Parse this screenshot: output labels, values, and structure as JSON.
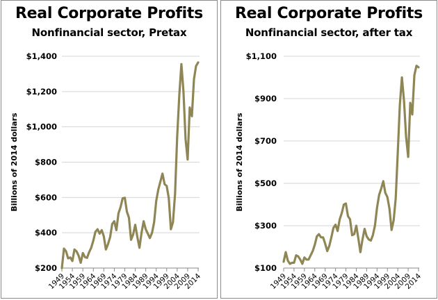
{
  "chart_data": [
    {
      "type": "line",
      "title": "Real Corporate Profits",
      "subtitle": "Nonfinancial sector, Pretax",
      "xlabel": "",
      "ylabel": "Billions of 2014 dollars",
      "ylim": [
        200,
        1400
      ],
      "yticks": [
        200,
        400,
        600,
        800,
        1000,
        1200,
        1400
      ],
      "ytick_labels": [
        "$200",
        "$400",
        "$600",
        "$800",
        "$1,000",
        "$1,200",
        "$1,400"
      ],
      "xtick_labels": [
        "1949",
        "1954",
        "1959",
        "1964",
        "1969",
        "1974",
        "1979",
        "1984",
        "1989",
        "1994",
        "1999",
        "2004",
        "2009",
        "2014"
      ],
      "grid": true,
      "line_color": "#8f8655",
      "x": [
        1949,
        1950,
        1951,
        1952,
        1953,
        1954,
        1955,
        1956,
        1957,
        1958,
        1959,
        1960,
        1961,
        1962,
        1963,
        1964,
        1965,
        1966,
        1967,
        1968,
        1969,
        1970,
        1971,
        1972,
        1973,
        1974,
        1975,
        1976,
        1977,
        1978,
        1979,
        1980,
        1981,
        1982,
        1983,
        1984,
        1985,
        1986,
        1987,
        1988,
        1989,
        1990,
        1991,
        1992,
        1993,
        1994,
        1995,
        1996,
        1997,
        1998,
        1999,
        2000,
        2001,
        2002,
        2003,
        2004,
        2005,
        2006,
        2007,
        2008,
        2009,
        2010,
        2011,
        2012,
        2013,
        2014
      ],
      "series": [
        {
          "name": "Pretax profits",
          "values": [
            200,
            310,
            295,
            255,
            260,
            240,
            305,
            295,
            270,
            230,
            285,
            262,
            258,
            290,
            315,
            355,
            405,
            420,
            395,
            415,
            380,
            305,
            335,
            375,
            450,
            465,
            415,
            510,
            545,
            595,
            598,
            520,
            485,
            360,
            390,
            445,
            375,
            315,
            400,
            465,
            420,
            395,
            370,
            400,
            460,
            580,
            645,
            690,
            735,
            675,
            665,
            595,
            420,
            460,
            620,
            940,
            1180,
            1355,
            1200,
            930,
            815,
            1110,
            1060,
            1270,
            1345,
            1365
          ]
        }
      ]
    },
    {
      "type": "line",
      "title": "Real Corporate Profits",
      "subtitle": "Nonfinancial sector, after tax",
      "xlabel": "",
      "ylabel": "Billions of 2014  dollars",
      "ylim": [
        100,
        1100
      ],
      "yticks": [
        100,
        300,
        500,
        700,
        900,
        1100
      ],
      "ytick_labels": [
        "$100",
        "$300",
        "$500",
        "$700",
        "$900",
        "$1,100"
      ],
      "xtick_labels": [
        "1949",
        "1954",
        "1959",
        "1964",
        "1969",
        "1974",
        "1979",
        "1984",
        "1989",
        "1994",
        "1999",
        "2004",
        "2009",
        "2014"
      ],
      "grid": true,
      "line_color": "#8f8655",
      "x": [
        1949,
        1950,
        1951,
        1952,
        1953,
        1954,
        1955,
        1956,
        1957,
        1958,
        1959,
        1960,
        1961,
        1962,
        1963,
        1964,
        1965,
        1966,
        1967,
        1968,
        1969,
        1970,
        1971,
        1972,
        1973,
        1974,
        1975,
        1976,
        1977,
        1978,
        1979,
        1980,
        1981,
        1982,
        1983,
        1984,
        1985,
        1986,
        1987,
        1988,
        1989,
        1990,
        1991,
        1992,
        1993,
        1994,
        1995,
        1996,
        1997,
        1998,
        1999,
        2000,
        2001,
        2002,
        2003,
        2004,
        2005,
        2006,
        2007,
        2008,
        2009,
        2010,
        2011,
        2012,
        2013,
        2014
      ],
      "series": [
        {
          "name": "After-tax profits",
          "values": [
            130,
            175,
            135,
            120,
            125,
            125,
            160,
            155,
            140,
            120,
            150,
            140,
            140,
            160,
            180,
            210,
            250,
            260,
            245,
            245,
            215,
            180,
            205,
            245,
            290,
            305,
            275,
            330,
            360,
            400,
            405,
            345,
            330,
            255,
            260,
            300,
            240,
            175,
            235,
            285,
            250,
            235,
            230,
            255,
            300,
            385,
            445,
            475,
            510,
            455,
            435,
            380,
            280,
            325,
            430,
            650,
            870,
            1000,
            890,
            720,
            625,
            880,
            825,
            1010,
            1055,
            1048
          ]
        }
      ]
    }
  ]
}
